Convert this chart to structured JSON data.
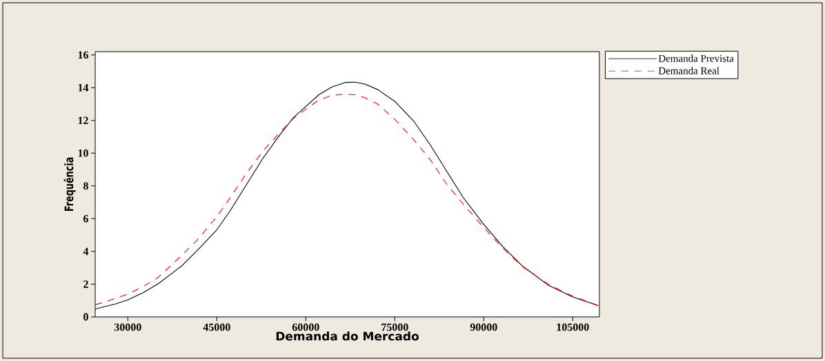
{
  "chart_data": {
    "type": "line",
    "xlabel": "Demanda do Mercado",
    "ylabel": "Frequência",
    "x": [
      24500,
      28000,
      30000,
      32650,
      35150,
      39000,
      41750,
      45000,
      47300,
      50050,
      52800,
      55600,
      57800,
      60000,
      62200,
      64400,
      66650,
      68300,
      69950,
      72150,
      75050,
      78250,
      81000,
      83750,
      86500,
      89850,
      93150,
      96450,
      100900,
      104850,
      109300
    ],
    "series": [
      {
        "name": "Demanda Prevista",
        "color": "#000000",
        "line_style": "solid",
        "values": [
          0.48,
          0.8,
          1.04,
          1.49,
          2.03,
          3.09,
          4.08,
          5.32,
          6.51,
          8.11,
          9.7,
          11.1,
          12.13,
          12.85,
          13.57,
          14.04,
          14.32,
          14.34,
          14.22,
          13.88,
          13.15,
          11.93,
          10.5,
          8.9,
          7.31,
          5.72,
          4.32,
          3.13,
          1.93,
          1.24,
          0.68
        ]
      },
      {
        "name": "Demanda Real",
        "color": "#ff0000",
        "line_style": "dashed",
        "values": [
          0.74,
          1.14,
          1.39,
          1.87,
          2.43,
          3.73,
          4.72,
          6.12,
          7.31,
          8.8,
          10.14,
          11.25,
          12.09,
          12.69,
          13.25,
          13.53,
          13.61,
          13.57,
          13.39,
          12.99,
          12.05,
          10.8,
          9.6,
          8.11,
          6.91,
          5.52,
          4.22,
          3.09,
          1.99,
          1.29,
          0.7
        ]
      }
    ],
    "xlim": [
      24500,
      109500
    ],
    "xticks": [
      30000,
      45000,
      60000,
      75000,
      90000,
      105000
    ],
    "ylim": [
      0,
      16.2
    ],
    "yticks": [
      0,
      2,
      4,
      6,
      8,
      10,
      12,
      14,
      16
    ],
    "grid": false,
    "legend": "top right",
    "marker": "none"
  }
}
